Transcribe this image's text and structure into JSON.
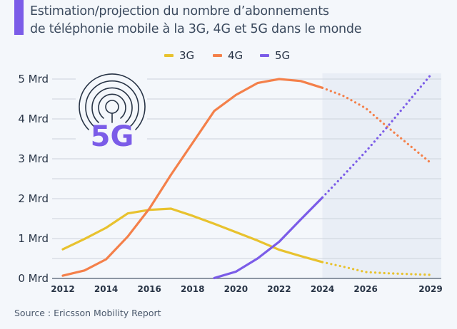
{
  "title": {
    "line1": "Estimation/projection du nombre d’abonnements",
    "line2": "de téléphonie mobile à la 3G, 4G et 5G dans le monde"
  },
  "legend": [
    {
      "label": "3G",
      "color": "#e8c22e"
    },
    {
      "label": "4G",
      "color": "#f4804a"
    },
    {
      "label": "5G",
      "color": "#7b5ce8"
    }
  ],
  "icon": {
    "name": "5g-antenna-icon",
    "text": "5G"
  },
  "source": "Source : Ericsson Mobility Report",
  "colors": {
    "accent": "#7b5ce8",
    "background": "#f4f7fb",
    "projection_shade": "#e9eef6",
    "grid": "#d3d9e1",
    "axis": "#6b7686"
  },
  "chart_data": {
    "type": "line",
    "title": "Estimation/projection du nombre d’abonnements de téléphonie mobile à la 3G, 4G et 5G dans le monde",
    "xlabel": "",
    "ylabel": "",
    "x_ticks": [
      "2012",
      "2014",
      "2016",
      "2018",
      "2020",
      "2022",
      "2024",
      "2026",
      "2029"
    ],
    "y_ticks": [
      "0 Mrd",
      "1 Mrd",
      "2 Mrd",
      "3 Mrd",
      "4 Mrd",
      "5 Mrd"
    ],
    "ylim": [
      0,
      5
    ],
    "xlim": [
      2012,
      2029
    ],
    "grid": true,
    "legend_position": "top-center",
    "projection_start": 2024,
    "projection_end": 2029,
    "series": [
      {
        "name": "3G",
        "color": "#e8c22e",
        "actual": {
          "x": [
            2012,
            2013,
            2014,
            2015,
            2016,
            2017,
            2018,
            2019,
            2020,
            2021,
            2022,
            2023,
            2024
          ],
          "y": [
            0.73,
            0.99,
            1.27,
            1.63,
            1.72,
            1.75,
            1.57,
            1.37,
            1.16,
            0.95,
            0.72,
            0.56,
            0.41
          ]
        },
        "projection": {
          "x": [
            2024,
            2025,
            2026,
            2027,
            2028,
            2029
          ],
          "y": [
            0.41,
            0.29,
            0.16,
            0.13,
            0.11,
            0.09
          ]
        }
      },
      {
        "name": "4G",
        "color": "#f4804a",
        "actual": {
          "x": [
            2012,
            2013,
            2014,
            2015,
            2016,
            2017,
            2018,
            2019,
            2020,
            2021,
            2022,
            2023,
            2024
          ],
          "y": [
            0.07,
            0.2,
            0.48,
            1.05,
            1.75,
            2.6,
            3.4,
            4.2,
            4.6,
            4.9,
            5.0,
            4.95,
            4.78
          ]
        },
        "projection": {
          "x": [
            2024,
            2025,
            2026,
            2027,
            2028,
            2029
          ],
          "y": [
            4.78,
            4.57,
            4.27,
            3.8,
            3.35,
            2.9
          ]
        }
      },
      {
        "name": "5G",
        "color": "#7b5ce8",
        "actual": {
          "x": [
            2019,
            2020,
            2021,
            2022,
            2023,
            2024
          ],
          "y": [
            0.01,
            0.17,
            0.5,
            0.92,
            1.48,
            2.03
          ]
        },
        "projection": {
          "x": [
            2024,
            2025,
            2026,
            2027,
            2028,
            2029
          ],
          "y": [
            2.03,
            2.6,
            3.18,
            3.8,
            4.45,
            5.1
          ]
        }
      }
    ]
  }
}
